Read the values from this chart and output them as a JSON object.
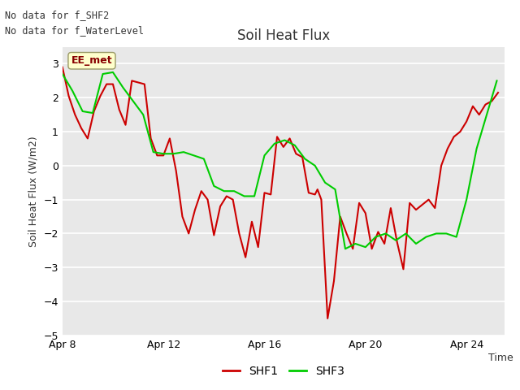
{
  "title": "Soil Heat Flux",
  "ylabel": "Soil Heat Flux (W/m2)",
  "xlabel": "Time",
  "ylim": [
    -5.0,
    3.5
  ],
  "yticks": [
    -5.0,
    -4.0,
    -3.0,
    -2.0,
    -1.0,
    0.0,
    1.0,
    2.0,
    3.0
  ],
  "xtick_labels": [
    "Apr 8",
    "Apr 12",
    "Apr 16",
    "Apr 20",
    "Apr 24"
  ],
  "xtick_positions": [
    0,
    4,
    8,
    12,
    16
  ],
  "xlim": [
    0,
    17.5
  ],
  "no_data_text": [
    "No data for f_SHF2",
    "No data for f_WaterLevel"
  ],
  "ee_met_label": "EE_met",
  "legend_entries": [
    "SHF1",
    "SHF3"
  ],
  "shf1_color": "#cc0000",
  "shf3_color": "#00cc00",
  "plot_bg": "#e8e8e8",
  "fig_bg": "#ffffff",
  "grid_color": "#ffffff",
  "shf1_x": [
    0,
    0.25,
    0.5,
    0.75,
    1.0,
    1.25,
    1.5,
    1.75,
    2.0,
    2.25,
    2.5,
    2.75,
    3.0,
    3.25,
    3.5,
    3.75,
    4.0,
    4.25,
    4.5,
    4.75,
    5.0,
    5.25,
    5.5,
    5.75,
    6.0,
    6.25,
    6.5,
    6.75,
    7.0,
    7.25,
    7.5,
    7.75,
    8.0,
    8.25,
    8.5,
    8.75,
    9.0,
    9.25,
    9.5,
    9.75,
    10.0,
    10.1,
    10.25,
    10.5,
    10.75,
    11.0,
    11.25,
    11.5,
    11.75,
    12.0,
    12.25,
    12.5,
    12.75,
    13.0,
    13.25,
    13.5,
    13.75,
    14.0,
    14.25,
    14.5,
    14.75,
    15.0,
    15.25,
    15.5,
    15.75,
    16.0,
    16.25,
    16.5,
    16.75,
    17.0,
    17.25
  ],
  "shf1_y": [
    2.9,
    2.05,
    1.5,
    1.1,
    0.8,
    1.6,
    2.05,
    2.4,
    2.4,
    1.65,
    1.2,
    2.5,
    2.45,
    2.4,
    0.8,
    0.3,
    0.3,
    0.8,
    -0.15,
    -1.5,
    -2.0,
    -1.3,
    -0.75,
    -1.0,
    -2.05,
    -1.2,
    -0.9,
    -1.0,
    -2.0,
    -2.7,
    -1.65,
    -2.4,
    -0.8,
    -0.85,
    0.85,
    0.55,
    0.8,
    0.35,
    0.25,
    -0.8,
    -0.85,
    -0.7,
    -1.0,
    -4.5,
    -3.4,
    -1.5,
    -2.0,
    -2.45,
    -1.1,
    -1.4,
    -2.45,
    -1.95,
    -2.3,
    -1.25,
    -2.25,
    -3.05,
    -1.1,
    -1.3,
    -1.15,
    -1.0,
    -1.25,
    0.0,
    0.5,
    0.85,
    1.0,
    1.3,
    1.75,
    1.5,
    1.8,
    1.9,
    2.15
  ],
  "shf3_x": [
    0,
    0.4,
    0.8,
    1.2,
    1.6,
    2.0,
    2.4,
    2.8,
    3.2,
    3.6,
    4.0,
    4.4,
    4.8,
    5.2,
    5.6,
    6.0,
    6.4,
    6.8,
    7.2,
    7.6,
    8.0,
    8.4,
    8.8,
    9.2,
    9.6,
    10.0,
    10.4,
    10.8,
    11.2,
    11.6,
    12.0,
    12.4,
    12.8,
    13.2,
    13.6,
    14.0,
    14.4,
    14.8,
    15.2,
    15.6,
    16.0,
    16.4,
    16.8,
    17.2
  ],
  "shf3_y": [
    2.7,
    2.2,
    1.6,
    1.55,
    2.7,
    2.75,
    2.3,
    1.9,
    1.5,
    0.4,
    0.35,
    0.35,
    0.4,
    0.3,
    0.2,
    -0.6,
    -0.75,
    -0.75,
    -0.9,
    -0.9,
    0.3,
    0.65,
    0.75,
    0.6,
    0.2,
    0.0,
    -0.5,
    -0.7,
    -2.45,
    -2.3,
    -2.4,
    -2.1,
    -2.0,
    -2.2,
    -2.0,
    -2.3,
    -2.1,
    -2.0,
    -2.0,
    -2.1,
    -1.0,
    0.5,
    1.5,
    2.5
  ]
}
